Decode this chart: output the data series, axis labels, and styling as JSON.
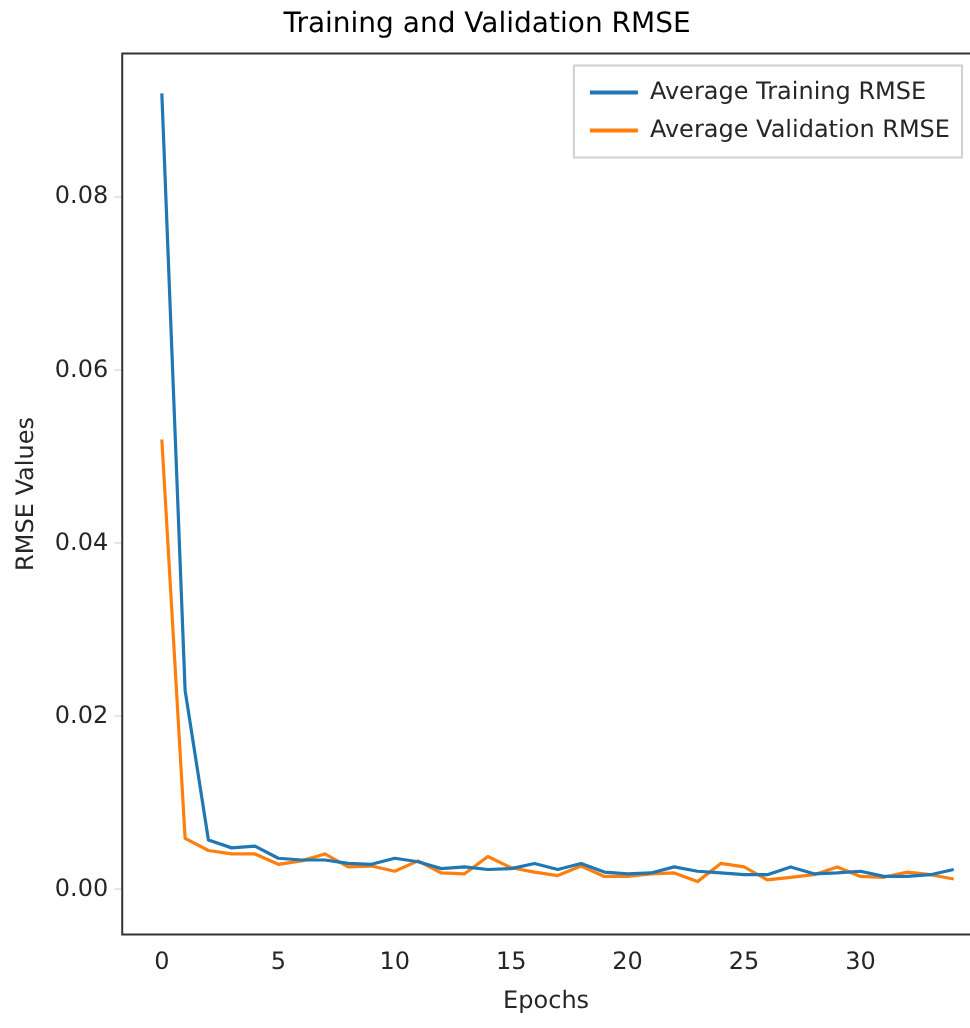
{
  "chart_data": {
    "type": "line",
    "title": "Training and Validation RMSE",
    "xlabel": "Epochs",
    "ylabel": "RMSE Values",
    "x": [
      0,
      1,
      2,
      3,
      4,
      5,
      6,
      7,
      8,
      9,
      10,
      11,
      12,
      13,
      14,
      15,
      16,
      17,
      18,
      19,
      20,
      21,
      22,
      23,
      24,
      25,
      26,
      27,
      28,
      29,
      30,
      31,
      32,
      33,
      34
    ],
    "series": [
      {
        "name": "Average Training RMSE",
        "color": "#1f77b4",
        "values": [
          0.092,
          0.023,
          0.0057,
          0.0048,
          0.005,
          0.0036,
          0.0034,
          0.0034,
          0.003,
          0.0029,
          0.0036,
          0.0032,
          0.0024,
          0.0026,
          0.0023,
          0.0024,
          0.003,
          0.0023,
          0.003,
          0.002,
          0.0018,
          0.0019,
          0.0026,
          0.0021,
          0.0019,
          0.0017,
          0.0017,
          0.0026,
          0.0018,
          0.0019,
          0.0021,
          0.0015,
          0.0015,
          0.0017,
          0.0023
        ]
      },
      {
        "name": "Average Validation RMSE",
        "color": "#ff7f0e",
        "values": [
          0.052,
          0.0059,
          0.0045,
          0.0041,
          0.0041,
          0.0029,
          0.0033,
          0.0041,
          0.0026,
          0.0027,
          0.0021,
          0.0033,
          0.0019,
          0.0018,
          0.0038,
          0.0025,
          0.002,
          0.0016,
          0.0027,
          0.0015,
          0.0015,
          0.0018,
          0.0019,
          0.0009,
          0.003,
          0.0026,
          0.0011,
          0.0014,
          0.0017,
          0.0026,
          0.0015,
          0.0014,
          0.002,
          0.0017,
          0.0012
        ]
      }
    ],
    "xlim": [
      -1.7,
      34.7
    ],
    "xticks": [
      0,
      5,
      10,
      15,
      20,
      25,
      30
    ],
    "ylim": [
      -0.0052,
      0.0966
    ],
    "yticks": [
      {
        "value": 0,
        "label": "0.00"
      },
      {
        "value": 0.02,
        "label": "0.02"
      },
      {
        "value": 0.04,
        "label": "0.04"
      },
      {
        "value": 0.06,
        "label": "0.06"
      },
      {
        "value": 0.08,
        "label": "0.08"
      }
    ],
    "grid": false,
    "legend": "top right",
    "marker": "none",
    "line_style": "solid"
  }
}
